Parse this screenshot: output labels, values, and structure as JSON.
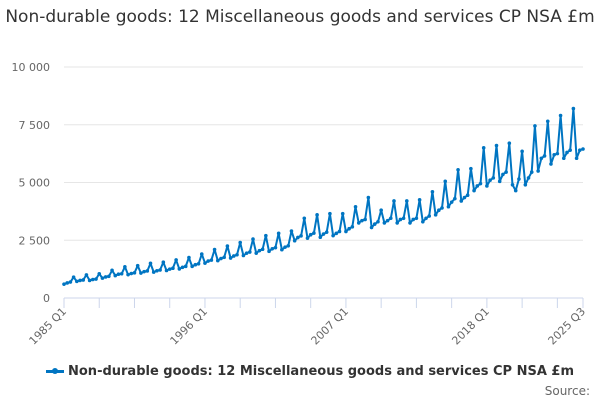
{
  "chart_data": {
    "type": "line",
    "title": "Non-durable goods: 12 Miscellaneous goods and services CP NSA £m",
    "xlabel": "",
    "ylabel": "",
    "ylim": [
      0,
      10000
    ],
    "yticks": [
      0,
      2500,
      5000,
      7500,
      10000
    ],
    "ytick_labels": [
      "0",
      "2 500",
      "5 000",
      "7 500",
      "10 000"
    ],
    "xtick_labels": [
      "1985 Q1",
      "1996 Q1",
      "2007 Q1",
      "2018 Q1",
      "2025 Q3"
    ],
    "x_start": "1985 Q1",
    "x_end": "2025 Q3",
    "grid": true,
    "legend_position": "bottom",
    "color": "#0075c2",
    "series": [
      {
        "name": "Non-durable goods: 12 Miscellaneous goods and services CP NSA £m",
        "values": [
          600,
          650,
          690,
          900,
          720,
          760,
          780,
          1000,
          760,
          800,
          820,
          1050,
          860,
          910,
          940,
          1200,
          970,
          1030,
          1050,
          1350,
          1010,
          1060,
          1090,
          1400,
          1080,
          1140,
          1170,
          1500,
          1120,
          1180,
          1210,
          1550,
          1190,
          1250,
          1290,
          1650,
          1260,
          1330,
          1370,
          1750,
          1370,
          1440,
          1480,
          1900,
          1510,
          1600,
          1640,
          2100,
          1620,
          1710,
          1760,
          2250,
          1730,
          1820,
          1870,
          2400,
          1840,
          1940,
          1990,
          2550,
          1940,
          2050,
          2110,
          2700,
          2020,
          2130,
          2180,
          2800,
          2090,
          2200,
          2260,
          2900,
          2480,
          2620,
          2690,
          3450,
          2590,
          2740,
          2810,
          3600,
          2630,
          2770,
          2850,
          3650,
          2700,
          2800,
          2880,
          3650,
          2880,
          3000,
          3080,
          3950,
          3250,
          3350,
          3400,
          4350,
          3050,
          3200,
          3300,
          3800,
          3250,
          3350,
          3450,
          4200,
          3250,
          3400,
          3450,
          4200,
          3250,
          3400,
          3450,
          4250,
          3300,
          3450,
          3550,
          4600,
          3600,
          3800,
          3900,
          5050,
          3950,
          4150,
          4300,
          5550,
          4200,
          4350,
          4450,
          5600,
          4650,
          4850,
          4950,
          6500,
          4850,
          5100,
          5200,
          6600,
          5050,
          5350,
          5450,
          6700,
          4900,
          4650,
          5150,
          6350,
          4900,
          5200,
          5450,
          7450,
          5500,
          6050,
          6150,
          7650,
          5800,
          6200,
          6250,
          7900,
          6050,
          6300,
          6400,
          8200,
          6050,
          6400,
          6450
        ]
      }
    ]
  },
  "source_label": "Source:"
}
